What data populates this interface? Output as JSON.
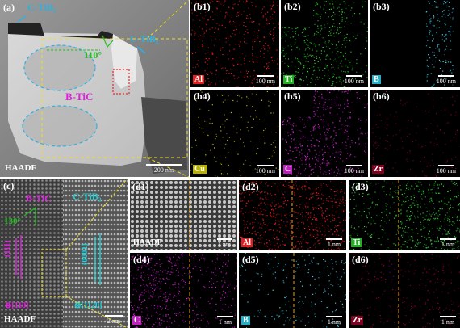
{
  "panel_a": {
    "letter": "(a)",
    "labels": {
      "ctib2_top": "C-TiB₂",
      "ctib2_right": "C-TiB₂",
      "angle": "110°",
      "btic": "B-TiC"
    },
    "detector": "HAADF",
    "scale": "200 nm"
  },
  "maps_b": [
    {
      "letter": "(b1)",
      "element": "Al",
      "element_color": "#e02020",
      "scale": "100 nm",
      "map_color": "#ff2020"
    },
    {
      "letter": "(b2)",
      "element": "Ti",
      "element_color": "#20b020",
      "scale": "100 nm",
      "map_color": "#30e030"
    },
    {
      "letter": "(b3)",
      "element": "B",
      "element_color": "#20b0c8",
      "scale": "100 nm",
      "map_color": "#40e0ff"
    },
    {
      "letter": "(b4)",
      "element": "Cu",
      "element_color": "#b8b000",
      "scale": "100 nm",
      "map_color": "#d8d000"
    },
    {
      "letter": "(b5)",
      "element": "C",
      "element_color": "#c020c0",
      "scale": "100 nm",
      "map_color": "#e020e0"
    },
    {
      "letter": "(b6)",
      "element": "Zr",
      "element_color": "#800020",
      "scale": "100 nm",
      "map_color": "#a00030"
    }
  ],
  "panel_c": {
    "letter": "(c)",
    "labels": {
      "btic": "B-TiC",
      "ctib2": "C-TiB₂",
      "angle": "130°",
      "plane_left": "(111)",
      "plane_right": "(0001)",
      "zone_left": "⊗[110]",
      "zone_right": "⊗[1120]"
    },
    "detector": "HAADF",
    "scale": "2 nm"
  },
  "panel_d1": {
    "letter": "(d1)",
    "detector": "HAADF",
    "scale": "1 nm"
  },
  "maps_d": [
    {
      "letter": "(d2)",
      "element": "Al",
      "element_color": "#e02020",
      "scale": "1 nm",
      "map_color": "#ff2020"
    },
    {
      "letter": "(d3)",
      "element": "Ti",
      "element_color": "#20b020",
      "scale": "1 nm",
      "map_color": "#30e030"
    },
    {
      "letter": "(d4)",
      "element": "C",
      "element_color": "#c020c0",
      "scale": "1 nm",
      "map_color": "#e020e0"
    },
    {
      "letter": "(d5)",
      "element": "B",
      "element_color": "#20b0c8",
      "scale": "1 nm",
      "map_color": "#40e0ff"
    },
    {
      "letter": "(d6)",
      "element": "Zr",
      "element_color": "#800020",
      "scale": "1 nm",
      "map_color": "#a00030"
    }
  ],
  "colors": {
    "callout": "#f0e020",
    "ellipse": "#30b0e0",
    "annot_green": "#20c020",
    "annot_magenta": "#e020e0",
    "annot_cyan": "#20d0d8",
    "box_red": "#ff2020"
  }
}
